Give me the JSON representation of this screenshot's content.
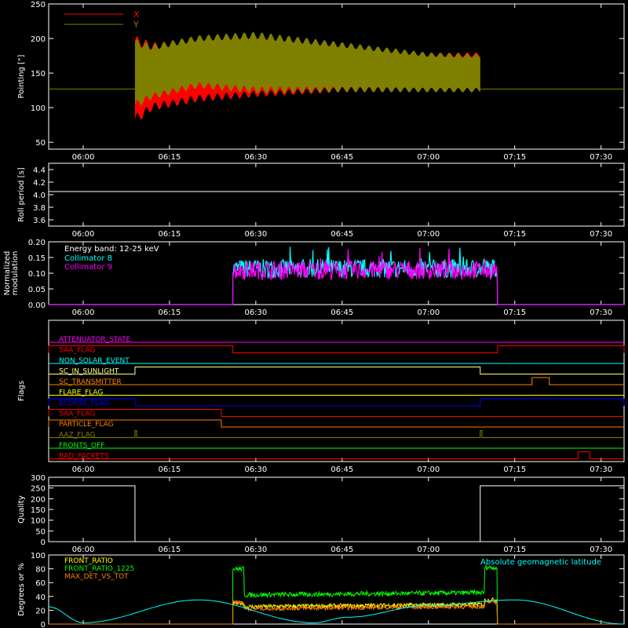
{
  "colors": {
    "background": "#000000",
    "axis": "#ffffff",
    "x_series": "#ff0000",
    "y_series": "#808000",
    "coll8": "#00ffff",
    "coll9": "#ff00ff",
    "front_ratio": "#ffff00",
    "front_ratio_1225": "#00ff00",
    "max_det": "#ff8000",
    "geolat": "#00ffff"
  },
  "time_axis": {
    "start": "05:54",
    "end": "07:34",
    "ticks": [
      "06:00",
      "06:15",
      "06:30",
      "06:45",
      "07:00",
      "07:15",
      "07:30"
    ]
  },
  "chart_data": [
    {
      "type": "area",
      "ylabel": "Pointing [\"]",
      "ylim": [
        40,
        250
      ],
      "yticks": [
        "50",
        "100",
        "150",
        "200",
        "250"
      ],
      "legend": {
        "placement": "top-left"
      },
      "baseline": 127,
      "active_window": [
        "06:09",
        "07:09"
      ],
      "series": [
        {
          "name": "X",
          "color": "#ff0000",
          "envelope_times": [
            "06:09",
            "06:12",
            "06:20",
            "06:30",
            "06:45",
            "07:00",
            "07:09"
          ],
          "upper": [
            205,
            195,
            198,
            196,
            187,
            180,
            180
          ],
          "lower": [
            75,
            95,
            108,
            115,
            122,
            123,
            124
          ]
        },
        {
          "name": "Y",
          "color": "#808000",
          "envelope_times": [
            "06:09",
            "06:12",
            "06:20",
            "06:30",
            "06:45",
            "07:00",
            "07:09"
          ],
          "upper": [
            200,
            192,
            205,
            210,
            195,
            180,
            178
          ],
          "lower": [
            98,
            112,
            128,
            120,
            122,
            122,
            122
          ]
        }
      ]
    },
    {
      "type": "line",
      "ylabel": "Roll period [s]",
      "ylim": [
        3.5,
        4.5
      ],
      "yticks": [
        "3.6",
        "3.8",
        "4.0",
        "4.2",
        "4.4"
      ],
      "series": [
        {
          "color": "#ffffff",
          "value": 4.05
        }
      ]
    },
    {
      "type": "line",
      "ylabel": "Normalized modulation",
      "ylim": [
        0,
        0.2
      ],
      "yticks": [
        "0.00",
        "0.05",
        "0.10",
        "0.15",
        "0.20"
      ],
      "annotation": "Energy band: 12-25 keV",
      "active_window": [
        "06:26",
        "07:12"
      ],
      "series": [
        {
          "name": "Collimator 8",
          "color": "#00ffff",
          "mean": 0.115
        },
        {
          "name": "Collimator 9",
          "color": "#ff00ff",
          "mean": 0.11
        }
      ]
    },
    {
      "type": "line",
      "ylabel": "Flags",
      "flags": [
        {
          "name": "ATTENUATOR_STATE",
          "color": "#ff00ff",
          "on": []
        },
        {
          "name": "SAA_FLAG",
          "color": "#ff0000",
          "on": [
            [
              "05:54",
              "06:26"
            ],
            [
              "07:12",
              "07:34"
            ]
          ]
        },
        {
          "name": "NON_SOLAR_EVENT",
          "color": "#00ffff",
          "on": []
        },
        {
          "name": "SC_IN_SUNLIGHT",
          "color": "#ffff80",
          "on": [
            [
              "06:09",
              "07:09"
            ]
          ]
        },
        {
          "name": "SC_TRANSMITTER",
          "color": "#ff8000",
          "on": [
            [
              "07:18",
              "07:21"
            ]
          ]
        },
        {
          "name": "FLARE_FLAG",
          "color": "#ffff00",
          "on": []
        },
        {
          "name": "ECLIPSE_FLAG",
          "color": "#0000ff",
          "on": [
            [
              "05:54",
              "06:09"
            ],
            [
              "07:09",
              "07:34"
            ]
          ]
        },
        {
          "name": "SAA_FLAG",
          "color": "#ff0000",
          "on": [
            [
              "05:54",
              "06:24"
            ]
          ]
        },
        {
          "name": "PARTICLE_FLAG",
          "color": "#ff8000",
          "on": [
            [
              "05:54",
              "06:24"
            ]
          ]
        },
        {
          "name": "AAZ_FLAG",
          "color": "#808000",
          "on": [
            [
              "06:09",
              "06:09.3"
            ],
            [
              "07:09",
              "07:09.3"
            ]
          ]
        },
        {
          "name": "FRONTS_OFF",
          "color": "#00ff00",
          "on": []
        },
        {
          "name": "BAD_PACKETS",
          "color": "#ff0000",
          "on": [
            [
              "07:26",
              "07:28"
            ]
          ]
        }
      ]
    },
    {
      "type": "line",
      "ylabel": "Quality",
      "ylim": [
        0,
        300
      ],
      "yticks": [
        "0",
        "50",
        "100",
        "150",
        "200",
        "250",
        "300"
      ],
      "series": [
        {
          "color": "#ffffff",
          "steps": [
            [
              "05:54",
              260
            ],
            [
              "06:09",
              0
            ],
            [
              "07:09",
              260
            ],
            [
              "07:34",
              260
            ]
          ]
        }
      ]
    },
    {
      "type": "line",
      "ylabel": "Degrees or %",
      "ylim": [
        0,
        100
      ],
      "yticks": [
        "0",
        "20",
        "40",
        "60",
        "80",
        "100"
      ],
      "active_window": [
        "06:26",
        "07:12"
      ],
      "series": [
        {
          "name": "FRONT_RATIO",
          "color": "#ffff00",
          "levels": [
            30,
            25,
            35
          ]
        },
        {
          "name": "FRONT_RATIO_1225",
          "color": "#00ff00",
          "levels": [
            80,
            42,
            82
          ]
        },
        {
          "name": "MAX_DET_VS_TOT",
          "color": "#ff8000",
          "levels": [
            32,
            22,
            32
          ]
        },
        {
          "name": "Absolute geomagnetic latitude",
          "color": "#00ffff",
          "times": [
            "05:54",
            "06:00",
            "06:20",
            "06:40",
            "06:46",
            "07:00",
            "07:15",
            "07:34"
          ],
          "values": [
            25,
            2,
            35,
            2,
            10,
            27,
            35,
            0
          ]
        }
      ]
    }
  ]
}
